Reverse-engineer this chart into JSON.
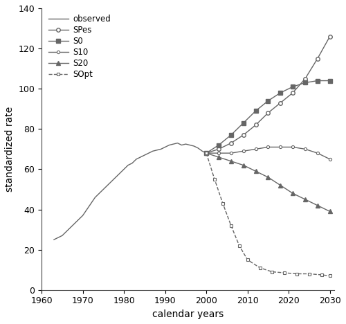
{
  "title": "",
  "xlabel": "calendar years",
  "ylabel": "standardized rate",
  "xlim": [
    1960,
    2031
  ],
  "ylim": [
    0,
    140
  ],
  "yticks": [
    0,
    20,
    40,
    60,
    80,
    100,
    120,
    140
  ],
  "xticks": [
    1960,
    1970,
    1980,
    1990,
    2000,
    2010,
    2020,
    2030
  ],
  "observed_x": [
    1963,
    1964,
    1965,
    1966,
    1967,
    1968,
    1969,
    1970,
    1971,
    1972,
    1973,
    1974,
    1975,
    1976,
    1977,
    1978,
    1979,
    1980,
    1981,
    1982,
    1983,
    1984,
    1985,
    1986,
    1987,
    1988,
    1989,
    1990,
    1991,
    1992,
    1993,
    1994,
    1995,
    1996,
    1997,
    1998,
    1999,
    2000
  ],
  "observed_y": [
    25,
    26,
    27,
    29,
    31,
    33,
    35,
    37,
    40,
    43,
    46,
    48,
    50,
    52,
    54,
    56,
    58,
    60,
    62,
    63,
    65,
    66,
    67,
    68,
    69,
    69.5,
    70,
    71,
    72,
    72.5,
    73,
    72,
    72.5,
    72,
    71.5,
    70.5,
    69,
    68
  ],
  "SPes_x": [
    2000,
    2003,
    2006,
    2009,
    2012,
    2015,
    2018,
    2021,
    2024,
    2027,
    2030
  ],
  "SPes_y": [
    68,
    70,
    73,
    77,
    82,
    88,
    93,
    98,
    105,
    115,
    126
  ],
  "S0_x": [
    2000,
    2003,
    2006,
    2009,
    2012,
    2015,
    2018,
    2021,
    2024,
    2027,
    2030
  ],
  "S0_y": [
    68,
    72,
    77,
    83,
    89,
    94,
    98,
    101,
    103,
    104,
    104
  ],
  "S10_x": [
    2000,
    2003,
    2006,
    2009,
    2012,
    2015,
    2018,
    2021,
    2024,
    2027,
    2030
  ],
  "S10_y": [
    68,
    68,
    68,
    69,
    70,
    71,
    71,
    71,
    70,
    68,
    65
  ],
  "S20_x": [
    2000,
    2003,
    2006,
    2009,
    2012,
    2015,
    2018,
    2021,
    2024,
    2027,
    2030
  ],
  "S20_y": [
    68,
    66,
    64,
    62,
    59,
    56,
    52,
    48,
    45,
    42,
    39
  ],
  "SOpt_x": [
    2000,
    2002,
    2004,
    2006,
    2008,
    2010,
    2013,
    2016,
    2019,
    2022,
    2025,
    2028,
    2030
  ],
  "SOpt_y": [
    68,
    55,
    43,
    32,
    22,
    15,
    11,
    9,
    8.5,
    8,
    8,
    7.5,
    7
  ],
  "line_color": "#666666",
  "bg_color": "#ffffff",
  "legend_loc": "upper left"
}
